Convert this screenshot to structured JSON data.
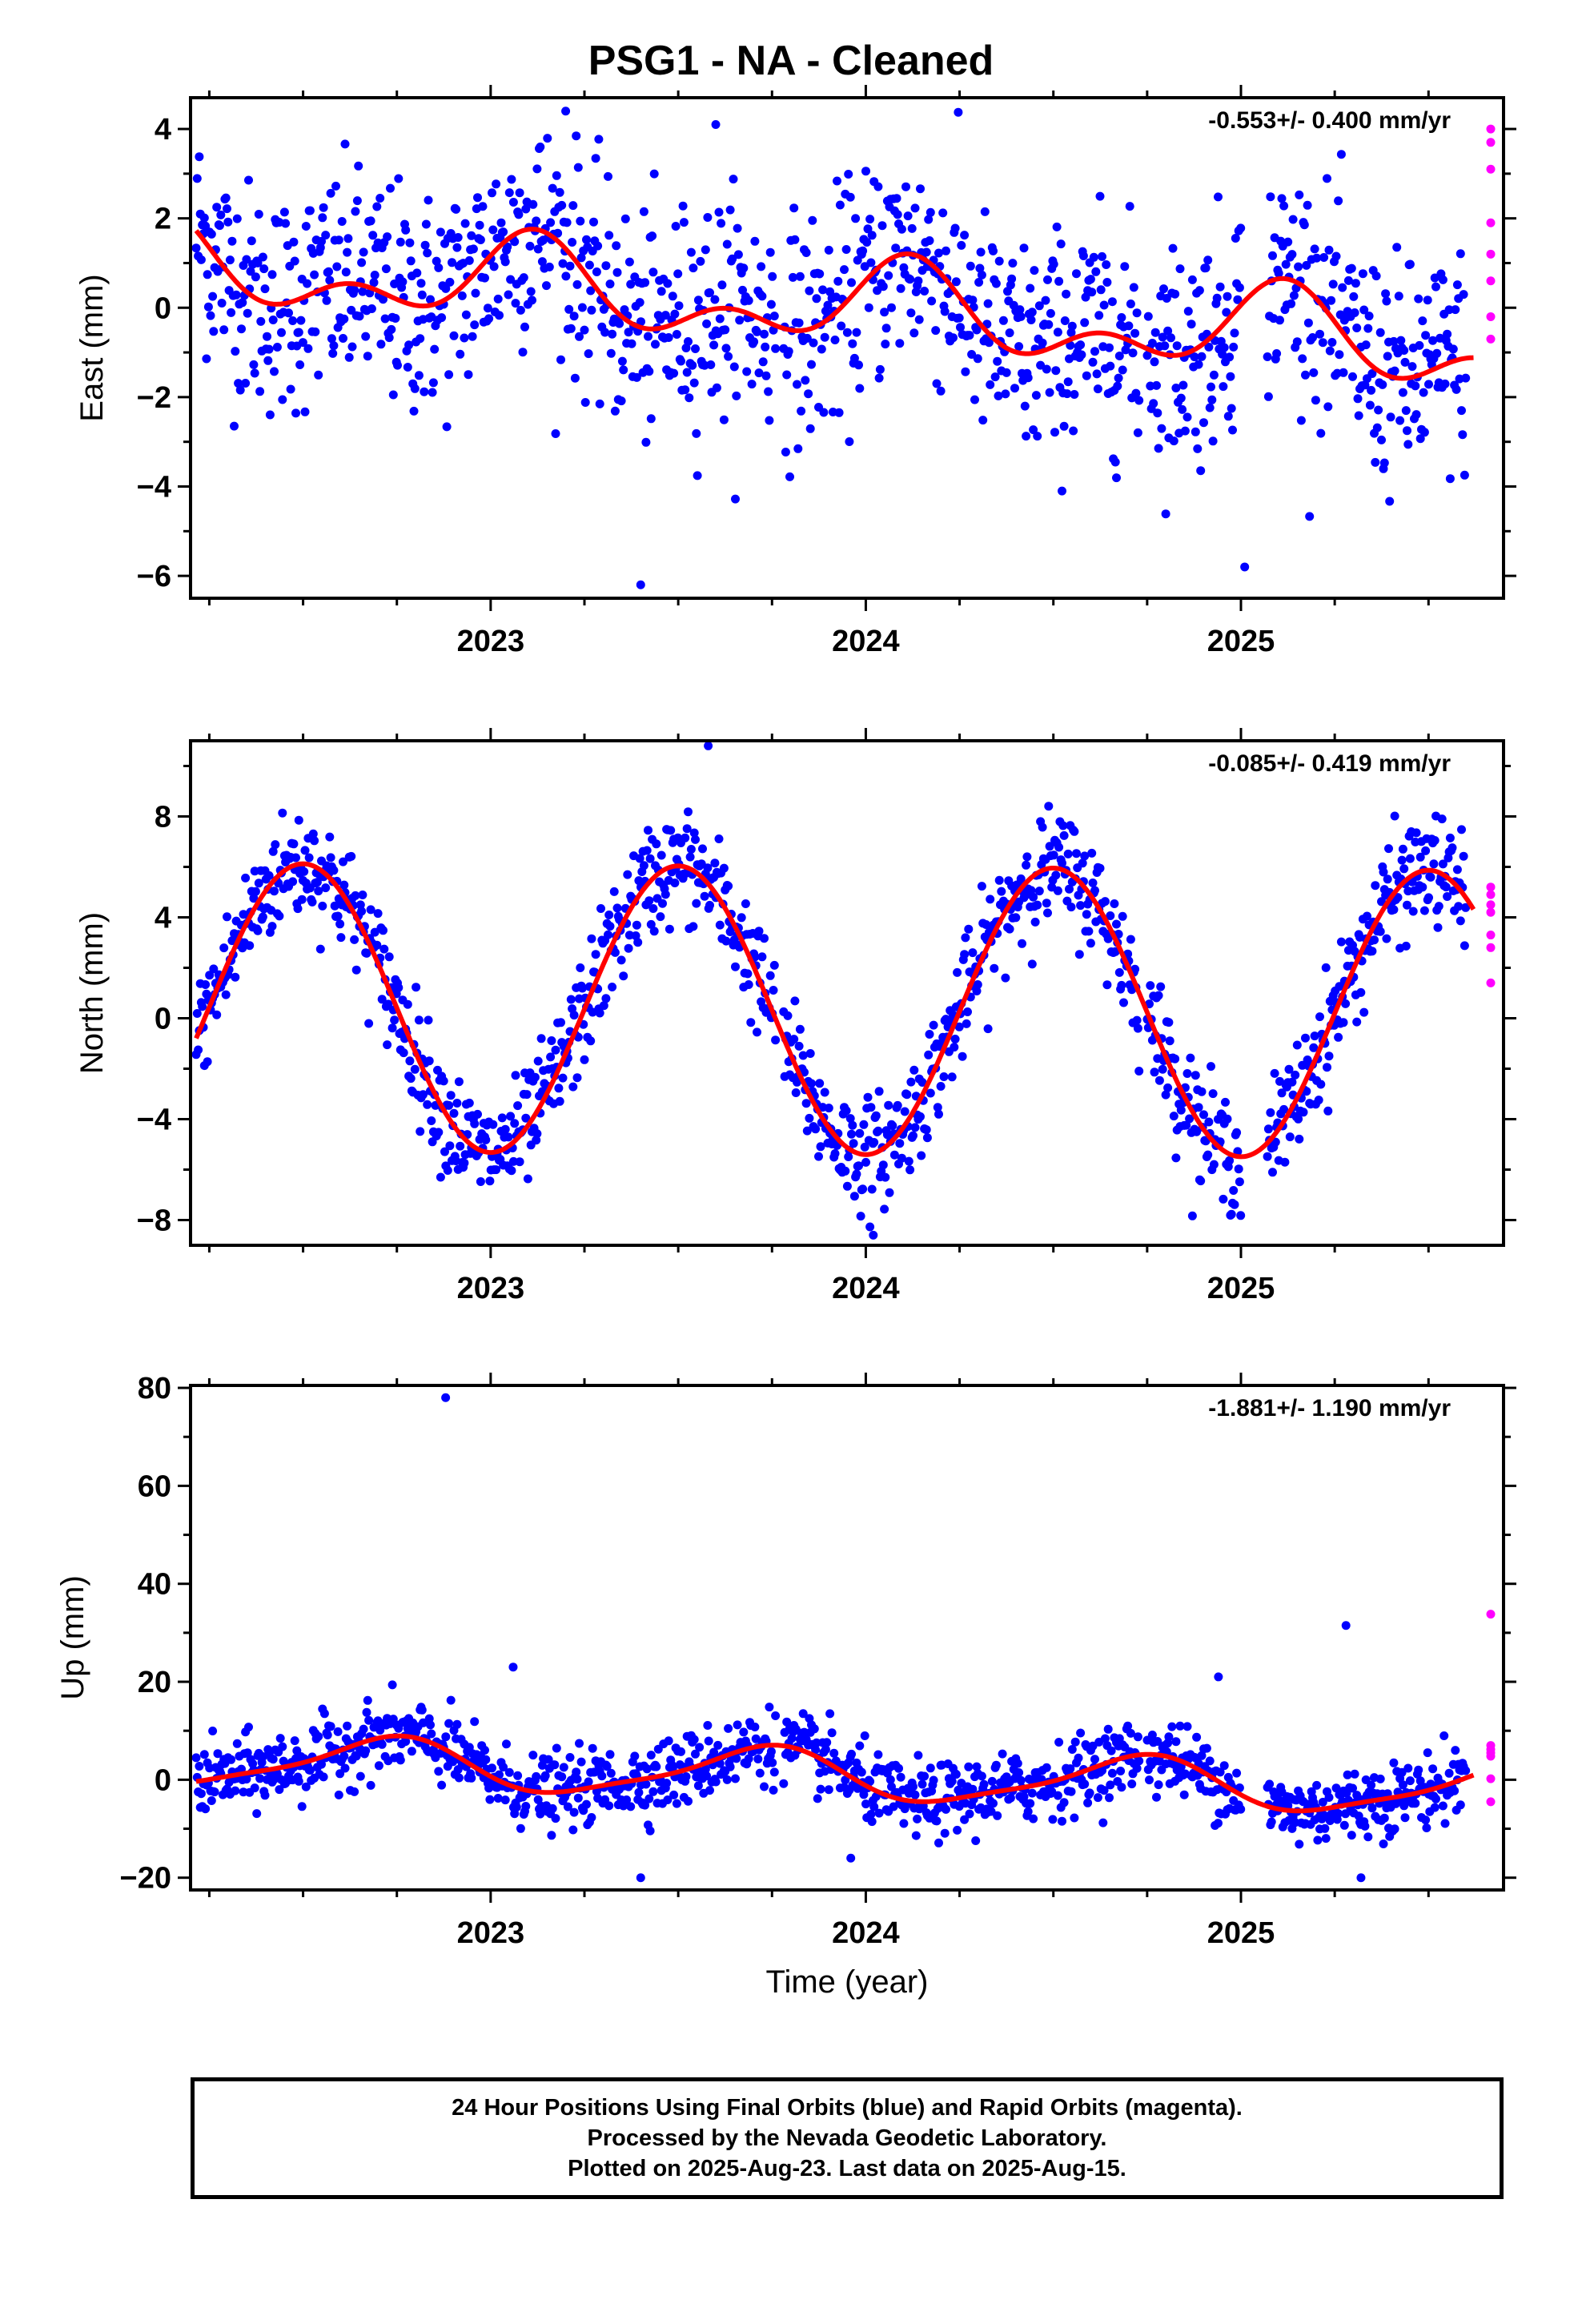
{
  "title": "PSG1  - NA - Cleaned",
  "xlabel": "Time (year)",
  "footer": {
    "line1": "24 Hour Positions Using Final Orbits (blue) and Rapid Orbits (magenta).",
    "line2": "Processed by the Nevada Geodetic Laboratory.",
    "line3": "Plotted on 2025-Aug-23. Last data on 2025-Aug-15."
  },
  "colors": {
    "final": "#0000ff",
    "rapid": "#ff00ff",
    "model": "#ff0000",
    "frame": "#000000"
  },
  "chart_data": [
    {
      "type": "scatter",
      "name": "east",
      "ylabel": "East (mm)",
      "rate": "-0.553+/- 0.400 mm/yr",
      "xlim": [
        2022.2,
        2025.7
      ],
      "ylim": [
        -6.5,
        4.7
      ],
      "yticks": [
        -6,
        -4,
        -2,
        0,
        2,
        4
      ],
      "xticks": [
        2023,
        2024,
        2025
      ],
      "model": {
        "mean": 0.0,
        "trend": -0.553,
        "annual_amp": 0.75,
        "annual_phase_peak": 0.1,
        "semi_amp": 0.55,
        "semi_phase_peak": 0.62,
        "noise_sd": 1.25,
        "t0": 2023.95
      },
      "outliers": [
        [
          2023.4,
          -6.2
        ],
        [
          2025.01,
          -5.8
        ],
        [
          2023.2,
          4.4
        ],
        [
          2023.6,
          4.1
        ]
      ],
      "rapid_values": [
        4.0,
        3.7,
        3.1,
        1.9,
        1.2,
        0.6,
        -0.2,
        -0.7
      ]
    },
    {
      "type": "scatter",
      "name": "north",
      "ylabel": "North (mm)",
      "rate": "-0.085+/- 0.419 mm/yr",
      "xlim": [
        2022.2,
        2025.7
      ],
      "ylim": [
        -9.0,
        11.0
      ],
      "yticks": [
        -8,
        -4,
        0,
        4,
        8
      ],
      "xticks": [
        2023,
        2024,
        2025
      ],
      "model": {
        "mean": 0.3,
        "trend": -0.085,
        "annual_amp": 5.7,
        "annual_phase_peak": 0.5,
        "semi_amp": 0.0,
        "semi_phase_peak": 0.0,
        "noise_sd": 1.1,
        "t0": 2023.95
      },
      "outliers": [
        [
          2023.58,
          10.8
        ],
        [
          2024.02,
          -8.6
        ]
      ],
      "rapid_values": [
        5.2,
        4.9,
        4.5,
        4.2,
        3.3,
        2.8,
        1.4
      ]
    },
    {
      "type": "scatter",
      "name": "up",
      "ylabel": "Up (mm)",
      "rate": "-1.881+/- 1.190 mm/yr",
      "xlim": [
        2022.2,
        2025.7
      ],
      "ylim": [
        -22.5,
        80.5
      ],
      "yticks": [
        -20,
        0,
        20,
        40,
        60,
        80
      ],
      "xticks": [
        2023,
        2024,
        2025
      ],
      "model": {
        "mean": 0.8,
        "trend": -1.881,
        "annual_amp": 5.0,
        "annual_phase_peak": 0.72,
        "semi_amp": 1.2,
        "semi_phase_peak": 0.3,
        "noise_sd": 3.6,
        "t0": 2023.95
      },
      "outliers": [
        [
          2022.88,
          78
        ],
        [
          2025.28,
          31.5
        ],
        [
          2023.06,
          23
        ],
        [
          2024.94,
          21
        ],
        [
          2023.4,
          -20
        ],
        [
          2025.32,
          -20
        ],
        [
          2023.96,
          -16
        ]
      ],
      "rapid_values": [
        33.8,
        7.0,
        6.2,
        5.5,
        4.8,
        0.2,
        -4.5
      ]
    }
  ]
}
